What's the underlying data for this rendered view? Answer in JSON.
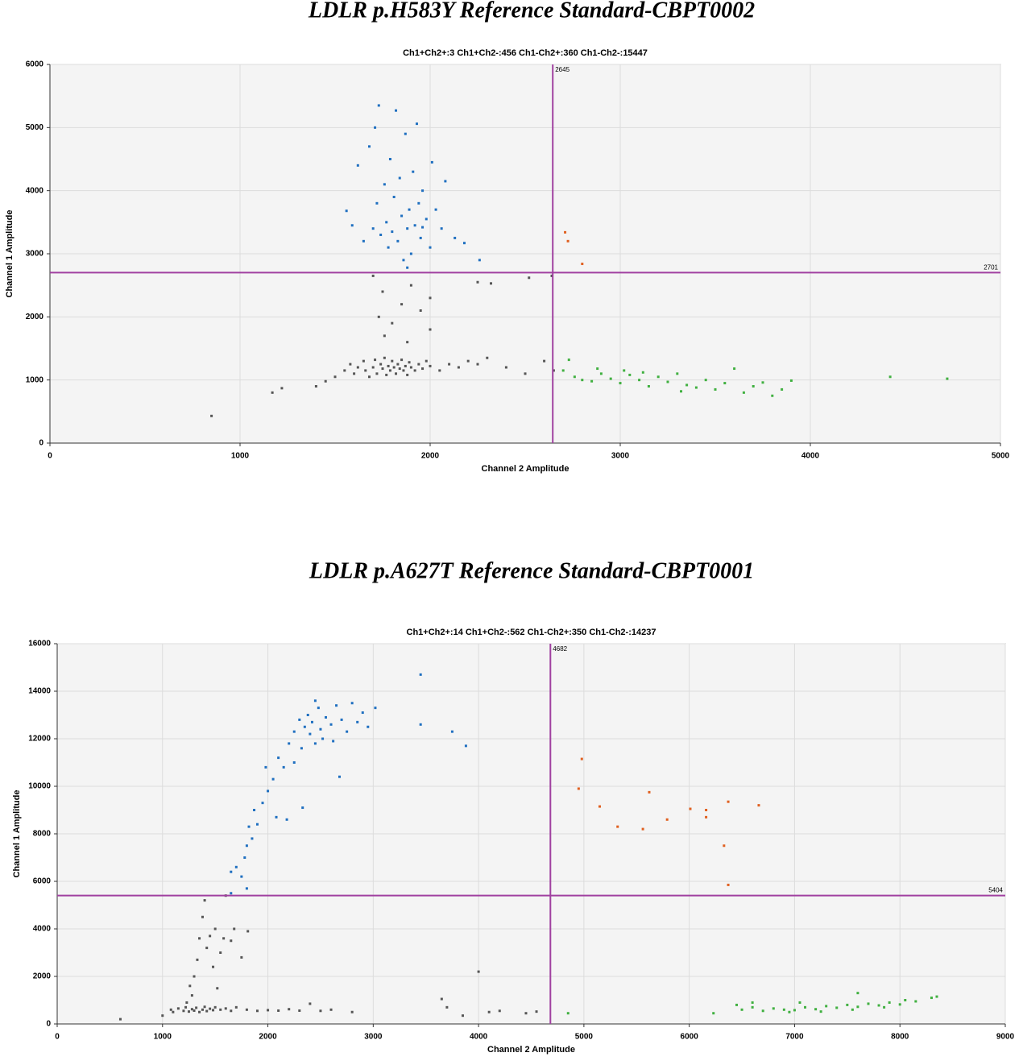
{
  "chart_data": [
    {
      "type": "scatter",
      "title": "LDLR p.H583Y Reference Standard-CBPT0002",
      "subtitle": "Ch1+Ch2+:3  Ch1+Ch2-:456  Ch1-Ch2+:360  Ch1-Ch2-:15447",
      "xlabel": "Channel 2 Amplitude",
      "ylabel": "Channel 1 Amplitude",
      "xlim": [
        0,
        5000
      ],
      "ylim": [
        0,
        6000
      ],
      "xticks": [
        0,
        1000,
        2000,
        3000,
        4000,
        5000
      ],
      "yticks": [
        0,
        1000,
        2000,
        3000,
        4000,
        5000,
        6000
      ],
      "grid": true,
      "x_threshold": 2645,
      "y_threshold": 2701,
      "threshold_color": "#a040a0",
      "series": [
        {
          "color": "#555555",
          "x": [
            850,
            1170,
            1220,
            1400,
            1450,
            1500,
            1550,
            1580,
            1600,
            1620,
            1650,
            1660,
            1680,
            1700,
            1710,
            1720,
            1740,
            1750,
            1760,
            1770,
            1780,
            1790,
            1800,
            1810,
            1820,
            1830,
            1840,
            1850,
            1860,
            1870,
            1880,
            1890,
            1900,
            1920,
            1940,
            1960,
            1980,
            2000,
            2050,
            2100,
            2150,
            2200,
            2250,
            2300,
            2400,
            2500,
            2600,
            2650,
            1730,
            1750,
            1760,
            1800,
            1850,
            1880,
            1900,
            1950,
            2000,
            2000,
            2250,
            2320,
            2520,
            2640,
            1700
          ],
          "y": [
            430,
            800,
            870,
            900,
            980,
            1050,
            1150,
            1250,
            1100,
            1200,
            1300,
            1150,
            1050,
            1200,
            1320,
            1100,
            1250,
            1180,
            1350,
            1080,
            1220,
            1150,
            1300,
            1200,
            1100,
            1250,
            1180,
            1320,
            1150,
            1220,
            1080,
            1280,
            1200,
            1150,
            1250,
            1180,
            1300,
            1220,
            1150,
            1250,
            1200,
            1300,
            1250,
            1350,
            1200,
            1100,
            1300,
            1150,
            2000,
            2400,
            1700,
            1900,
            2200,
            1600,
            2500,
            2100,
            1800,
            2300,
            2550,
            2530,
            2620,
            2650,
            2650
          ]
        },
        {
          "color": "#1f6fc0",
          "x": [
            1560,
            1590,
            1620,
            1650,
            1680,
            1700,
            1710,
            1720,
            1730,
            1740,
            1760,
            1770,
            1780,
            1790,
            1800,
            1810,
            1820,
            1830,
            1840,
            1850,
            1860,
            1870,
            1880,
            1890,
            1900,
            1910,
            1920,
            1930,
            1940,
            1950,
            1960,
            1980,
            2000,
            2010,
            2030,
            2060,
            2080,
            2130,
            2180,
            2260,
            1880,
            1960
          ],
          "y": [
            3680,
            3450,
            4400,
            3200,
            4700,
            3400,
            5000,
            3800,
            5350,
            3300,
            4100,
            3500,
            3100,
            4500,
            3350,
            3900,
            5270,
            3200,
            4200,
            3600,
            2900,
            4900,
            3400,
            3700,
            3000,
            4300,
            3450,
            5060,
            3800,
            3250,
            4000,
            3550,
            3100,
            4450,
            3700,
            3400,
            4150,
            3250,
            3170,
            2900,
            2780,
            3420
          ]
        },
        {
          "color": "#e06020",
          "x": [
            2710,
            2725,
            2800
          ],
          "y": [
            3340,
            3200,
            2840
          ]
        },
        {
          "color": "#40b040",
          "x": [
            2700,
            2730,
            2760,
            2800,
            2850,
            2900,
            2950,
            3000,
            3050,
            3100,
            3150,
            3200,
            3250,
            3300,
            3350,
            3400,
            3450,
            3500,
            3550,
            3600,
            3650,
            3700,
            3750,
            3800,
            3850,
            3900,
            4420,
            4720,
            2880,
            3120,
            3320,
            3020
          ],
          "y": [
            1150,
            1320,
            1050,
            1000,
            980,
            1100,
            1020,
            950,
            1080,
            1000,
            900,
            1050,
            970,
            1100,
            920,
            880,
            1000,
            850,
            950,
            1180,
            800,
            900,
            960,
            750,
            850,
            990,
            1050,
            1020,
            1180,
            1120,
            820,
            1150
          ]
        }
      ]
    },
    {
      "type": "scatter",
      "title": "LDLR p.A627T Reference Standard-CBPT0001",
      "subtitle": "Ch1+Ch2+:14  Ch1+Ch2-:562  Ch1-Ch2+:350  Ch1-Ch2-:14237",
      "xlabel": "Channel 2 Amplitude",
      "ylabel": "Channel 1 Amplitude",
      "xlim": [
        0,
        9000
      ],
      "ylim": [
        0,
        16000
      ],
      "xticks": [
        0,
        1000,
        2000,
        3000,
        4000,
        5000,
        6000,
        7000,
        8000,
        9000
      ],
      "yticks": [
        0,
        2000,
        4000,
        6000,
        8000,
        10000,
        12000,
        14000,
        16000
      ],
      "grid": true,
      "x_threshold": 4682,
      "y_threshold": 5404,
      "threshold_color": "#a040a0",
      "series": [
        {
          "color": "#555555",
          "x": [
            600,
            1000,
            1080,
            1100,
            1150,
            1200,
            1220,
            1250,
            1280,
            1300,
            1320,
            1350,
            1380,
            1400,
            1420,
            1450,
            1480,
            1500,
            1550,
            1600,
            1650,
            1700,
            1800,
            1900,
            2000,
            2100,
            2200,
            2300,
            2400,
            2500,
            2600,
            2800,
            3650,
            3700,
            3850,
            4000,
            4100,
            4200,
            4450,
            4550,
            1280,
            1300,
            1330,
            1350,
            1380,
            1400,
            1420,
            1450,
            1480,
            1500,
            1520,
            1550,
            1580,
            1600,
            1650,
            1680,
            1750,
            1810,
            1230,
            1260
          ],
          "y": [
            200,
            350,
            600,
            500,
            650,
            550,
            700,
            520,
            620,
            560,
            680,
            500,
            600,
            720,
            540,
            640,
            580,
            700,
            600,
            650,
            550,
            700,
            600,
            550,
            580,
            560,
            620,
            560,
            850,
            550,
            600,
            500,
            1050,
            700,
            350,
            2200,
            500,
            550,
            450,
            520,
            1200,
            2000,
            2700,
            3600,
            4500,
            5200,
            3200,
            3700,
            2400,
            4000,
            1500,
            3000,
            3600,
            5400,
            3500,
            4000,
            2800,
            3900,
            900,
            1600
          ]
        },
        {
          "color": "#1f6fc0",
          "x": [
            1650,
            1650,
            1700,
            1750,
            1780,
            1800,
            1800,
            1820,
            1850,
            1870,
            1900,
            1950,
            1980,
            2000,
            2050,
            2080,
            2100,
            2150,
            2200,
            2250,
            2300,
            2320,
            2350,
            2380,
            2400,
            2420,
            2450,
            2480,
            2500,
            2520,
            2550,
            2600,
            2620,
            2650,
            2680,
            2700,
            2750,
            2800,
            2850,
            2900,
            2950,
            3020,
            2330,
            2180,
            3450,
            3450,
            3750,
            3880,
            2450,
            2250
          ],
          "y": [
            5500,
            6400,
            6600,
            6200,
            7000,
            5700,
            7500,
            8300,
            7800,
            9000,
            8400,
            9300,
            10800,
            9800,
            10300,
            8700,
            11200,
            10800,
            11800,
            12300,
            12800,
            11600,
            12500,
            13000,
            12200,
            12700,
            11800,
            13300,
            12400,
            12000,
            12900,
            12600,
            11900,
            13400,
            10400,
            12800,
            12300,
            13500,
            12700,
            13100,
            12500,
            13300,
            9100,
            8600,
            14700,
            12600,
            12300,
            11700,
            13600,
            11000
          ]
        },
        {
          "color": "#e06020",
          "x": [
            4980,
            4950,
            5150,
            5320,
            5560,
            5620,
            5790,
            6010,
            6160,
            6160,
            6330,
            6370,
            6370,
            6660
          ],
          "y": [
            11150,
            9900,
            9150,
            8300,
            8200,
            9750,
            8600,
            9050,
            9000,
            8700,
            7500,
            9350,
            5850,
            9200
          ]
        },
        {
          "color": "#40b040",
          "x": [
            4850,
            6230,
            6450,
            6500,
            6600,
            6700,
            6800,
            6900,
            7000,
            7100,
            7200,
            7300,
            7400,
            7500,
            7600,
            7600,
            7700,
            7800,
            7900,
            8000,
            8050,
            8150,
            8300,
            8350,
            6950,
            7250,
            7550,
            7850,
            6600,
            7050
          ],
          "y": [
            450,
            450,
            800,
            600,
            700,
            550,
            650,
            600,
            580,
            700,
            620,
            750,
            680,
            800,
            1300,
            720,
            850,
            780,
            900,
            820,
            1000,
            950,
            1100,
            1150,
            500,
            520,
            600,
            700,
            900,
            900
          ]
        }
      ]
    }
  ]
}
